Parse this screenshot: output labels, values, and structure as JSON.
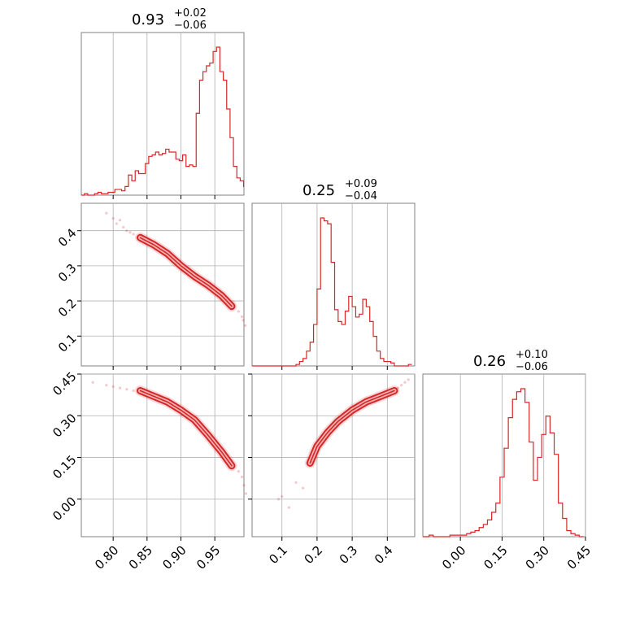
{
  "chart_data": {
    "type": "corner",
    "colors": {
      "main": "#d62728",
      "fill_light": "#f4b4b4",
      "grid": "#b0b0b0",
      "frame": "#808080"
    },
    "parameters": [
      {
        "title": {
          "value": "0.93",
          "plus": "+0.02",
          "minus": "−0.06"
        },
        "range": [
          0.753,
          0.993
        ],
        "ticks": [
          0.8,
          0.85,
          0.9,
          0.95
        ],
        "tick_labels": [
          "0.80",
          "0.85",
          "0.90",
          "0.95"
        ]
      },
      {
        "title": {
          "value": "0.25",
          "plus": "+0.09",
          "minus": "−0.04"
        },
        "range": [
          0.015,
          0.478
        ],
        "ticks": [
          0.1,
          0.2,
          0.3,
          0.4
        ],
        "tick_labels": [
          "0.1",
          "0.2",
          "0.3",
          "0.4"
        ]
      },
      {
        "title": {
          "value": "0.26",
          "plus": "+0.10",
          "minus": "−0.06"
        },
        "range": [
          -0.135,
          0.45
        ],
        "ticks": [
          0.0,
          0.15,
          0.3,
          0.45
        ],
        "tick_labels": [
          "0.00",
          "0.15",
          "0.30",
          "0.45"
        ]
      }
    ],
    "histograms": [
      {
        "param": 0,
        "bins": [
          0.75,
          0.755,
          0.76,
          0.765,
          0.77,
          0.775,
          0.78,
          0.785,
          0.79,
          0.795,
          0.8,
          0.805,
          0.81,
          0.815,
          0.82,
          0.825,
          0.83,
          0.835,
          0.84,
          0.845,
          0.85,
          0.855,
          0.86,
          0.865,
          0.87,
          0.875,
          0.88,
          0.885,
          0.89,
          0.895,
          0.9,
          0.905,
          0.91,
          0.915,
          0.92,
          0.925,
          0.93,
          0.935,
          0.94,
          0.945,
          0.95,
          0.955,
          0.96,
          0.965,
          0.97,
          0.975,
          0.98,
          0.985,
          0.99,
          0.995
        ],
        "counts": [
          0,
          0,
          1,
          0,
          0,
          1,
          2,
          1,
          1,
          2,
          2,
          4,
          4,
          3,
          6,
          14,
          10,
          17,
          15,
          15,
          22,
          27,
          28,
          30,
          28,
          29,
          32,
          30,
          30,
          25,
          24,
          28,
          20,
          21,
          20,
          57,
          80,
          86,
          90,
          92,
          100,
          103,
          86,
          80,
          60,
          40,
          20,
          12,
          10,
          6
        ]
      },
      {
        "param": 1,
        "bins": [
          0.015,
          0.025,
          0.035,
          0.045,
          0.055,
          0.065,
          0.075,
          0.085,
          0.095,
          0.105,
          0.115,
          0.125,
          0.135,
          0.145,
          0.155,
          0.165,
          0.175,
          0.185,
          0.195,
          0.205,
          0.215,
          0.225,
          0.235,
          0.245,
          0.255,
          0.265,
          0.275,
          0.285,
          0.295,
          0.305,
          0.315,
          0.325,
          0.335,
          0.345,
          0.355,
          0.365,
          0.375,
          0.385,
          0.395,
          0.405,
          0.415,
          0.425,
          0.435,
          0.445,
          0.455,
          0.465,
          0.475
        ],
        "counts": [
          0,
          0,
          0,
          0,
          0,
          0,
          0,
          0,
          0,
          0,
          0,
          0,
          0,
          1,
          3,
          5,
          10,
          16,
          28,
          52,
          100,
          98,
          96,
          70,
          38,
          30,
          28,
          37,
          47,
          40,
          33,
          35,
          45,
          40,
          30,
          20,
          10,
          5,
          3,
          3,
          2,
          0,
          0,
          0,
          0,
          1
        ]
      },
      {
        "param": 2,
        "bins": [
          -0.135,
          -0.12,
          -0.105,
          -0.09,
          -0.075,
          -0.06,
          -0.045,
          -0.03,
          -0.015,
          0.0,
          0.015,
          0.03,
          0.045,
          0.06,
          0.075,
          0.09,
          0.105,
          0.12,
          0.135,
          0.15,
          0.165,
          0.18,
          0.195,
          0.21,
          0.225,
          0.24,
          0.255,
          0.27,
          0.285,
          0.3,
          0.315,
          0.33,
          0.345,
          0.36,
          0.375,
          0.39,
          0.405,
          0.42,
          0.435,
          0.45
        ],
        "counts": [
          0,
          0,
          1,
          0,
          0,
          0,
          0,
          1,
          1,
          1,
          1,
          2,
          3,
          4,
          6,
          8,
          11,
          16,
          22,
          39,
          58,
          78,
          90,
          95,
          97,
          88,
          62,
          37,
          52,
          67,
          79,
          68,
          54,
          22,
          12,
          4,
          2,
          1,
          0
        ]
      }
    ],
    "pairs": [
      {
        "x_param": 0,
        "y_param": 1,
        "ridge_x": [
          0.84,
          0.86,
          0.88,
          0.9,
          0.92,
          0.94,
          0.96,
          0.975
        ],
        "ridge_y": [
          0.38,
          0.36,
          0.335,
          0.3,
          0.27,
          0.245,
          0.215,
          0.185
        ],
        "scatter_x": [
          0.79,
          0.8,
          0.805,
          0.81,
          0.815,
          0.82,
          0.825,
          0.83,
          0.985,
          0.99,
          0.992,
          0.995
        ],
        "scatter_y": [
          0.45,
          0.435,
          0.42,
          0.43,
          0.41,
          0.4,
          0.395,
          0.39,
          0.17,
          0.155,
          0.145,
          0.13
        ]
      },
      {
        "x_param": 0,
        "y_param": 2,
        "ridge_x": [
          0.84,
          0.86,
          0.88,
          0.9,
          0.92,
          0.94,
          0.96,
          0.975
        ],
        "ridge_y": [
          0.39,
          0.37,
          0.35,
          0.32,
          0.285,
          0.23,
          0.17,
          0.12
        ],
        "scatter_x": [
          0.77,
          0.79,
          0.8,
          0.81,
          0.82,
          0.83,
          0.985,
          0.99,
          0.993,
          0.996
        ],
        "scatter_y": [
          0.42,
          0.41,
          0.405,
          0.4,
          0.395,
          0.39,
          0.1,
          0.08,
          0.05,
          0.02
        ]
      },
      {
        "x_param": 1,
        "y_param": 2,
        "ridge_x": [
          0.18,
          0.2,
          0.23,
          0.26,
          0.3,
          0.34,
          0.38,
          0.42
        ],
        "ridge_y": [
          0.13,
          0.19,
          0.24,
          0.28,
          0.32,
          0.35,
          0.37,
          0.39
        ],
        "scatter_x": [
          0.09,
          0.1,
          0.12,
          0.14,
          0.16,
          0.43,
          0.44,
          0.45,
          0.46
        ],
        "scatter_y": [
          0.0,
          0.01,
          -0.03,
          0.06,
          0.04,
          0.4,
          0.41,
          0.42,
          0.43
        ]
      }
    ]
  }
}
